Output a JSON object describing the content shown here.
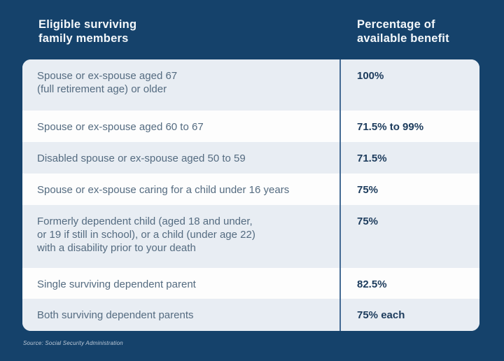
{
  "theme": {
    "background_navy": "#15426B",
    "row_shaded": "#E8EDF3",
    "row_plain": "#FDFDFD",
    "divider_blue": "#446A93",
    "member_text": "#546B80",
    "benefit_text": "#1C3B5C",
    "header_text": "#F4F8FB"
  },
  "header": {
    "left_label": "Eligible surviving\nfamily members",
    "right_label": "Percentage of\navailable benefit"
  },
  "table": {
    "rows": [
      {
        "member": "Spouse or ex-spouse aged 67\n(full retirement age) or older",
        "benefit": "100%"
      },
      {
        "member": "Spouse or ex-spouse aged 60 to 67",
        "benefit": "71.5% to 99%"
      },
      {
        "member": "Disabled spouse or ex-spouse aged 50 to 59",
        "benefit": "71.5%"
      },
      {
        "member": "Spouse or ex-spouse caring for a child under 16 years",
        "benefit": "75%"
      },
      {
        "member": "Formerly dependent child (aged 18 and under,\nor 19 if still in school), or a child (under age 22)\nwith a disability prior to your death",
        "benefit": "75%"
      },
      {
        "member": "Single surviving dependent parent",
        "benefit": "82.5%"
      },
      {
        "member": "Both surviving dependent parents",
        "benefit": "75% each"
      }
    ]
  },
  "footer": {
    "source": "Source: Social Security Administration"
  },
  "chart_data": {
    "type": "table",
    "title": "",
    "columns": [
      "Eligible surviving family members",
      "Percentage of available benefit"
    ],
    "rows": [
      [
        "Spouse or ex-spouse aged 67 (full retirement age) or older",
        "100%"
      ],
      [
        "Spouse or ex-spouse aged 60 to 67",
        "71.5% to 99%"
      ],
      [
        "Disabled spouse or ex-spouse aged 50 to 59",
        "71.5%"
      ],
      [
        "Spouse or ex-spouse caring for a child under 16 years",
        "75%"
      ],
      [
        "Formerly dependent child (aged 18 and under, or 19 if still in school), or a child (under age 22) with a disability prior to your death",
        "75%"
      ],
      [
        "Single surviving dependent parent",
        "82.5%"
      ],
      [
        "Both surviving dependent parents",
        "75% each"
      ]
    ],
    "source": "Source: Social Security Administration",
    "layout": {
      "row_shading": "alternating starting shaded",
      "column_divider": true
    }
  }
}
